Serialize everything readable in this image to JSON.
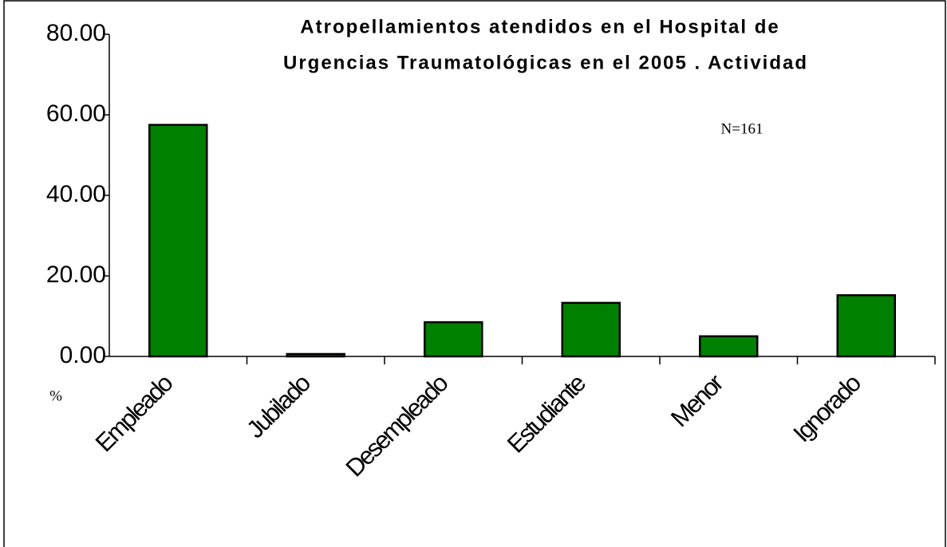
{
  "chart_data": {
    "type": "bar",
    "title": [
      "Atropellamientos atendidos en el Hospital de",
      "Urgencias Traumatológicas en el 2005 . Actividad"
    ],
    "annotation": "N=161",
    "y_label": "%",
    "categories": [
      "Empleado",
      "Jubilado",
      "Desempleado",
      "Estudiante",
      "Menor",
      "Ignorado"
    ],
    "values": [
      57.5,
      0.6,
      8.5,
      13.3,
      5.0,
      15.2
    ],
    "color": "#008000",
    "ylim": [
      0,
      80
    ],
    "yticks": [
      {
        "value": 0,
        "label": "0.00"
      },
      {
        "value": 20,
        "label": "20.00"
      },
      {
        "value": 40,
        "label": "40.00"
      },
      {
        "value": 60,
        "label": "60.00"
      },
      {
        "value": 80,
        "label": "80.00"
      }
    ],
    "grid": false
  }
}
